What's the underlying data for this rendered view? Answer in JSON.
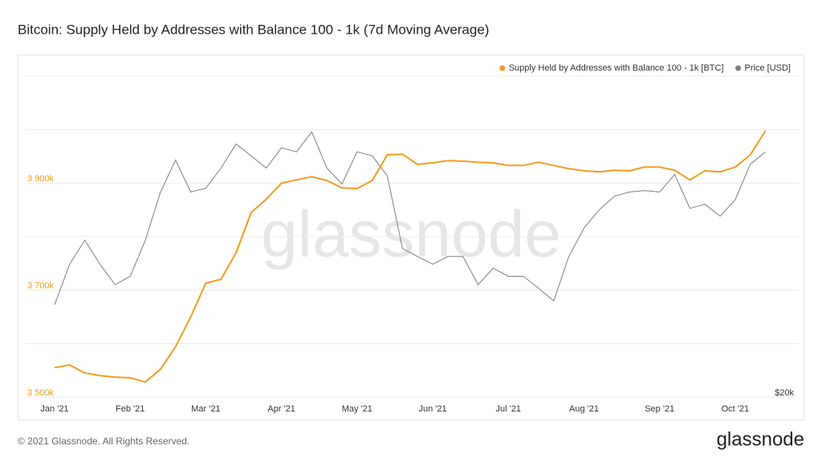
{
  "chart_data": {
    "type": "line",
    "title": "Bitcoin: Supply Held by Addresses with Balance 100 - 1k (7d Moving Average)",
    "x": [
      0,
      0.2,
      0.4,
      0.6,
      0.8,
      1.0,
      1.2,
      1.4,
      1.6,
      1.8,
      2.0,
      2.2,
      2.4,
      2.6,
      2.8,
      3.0,
      3.2,
      3.4,
      3.6,
      3.8,
      4.0,
      4.2,
      4.4,
      4.6,
      4.8,
      5.0,
      5.2,
      5.4,
      5.6,
      5.8,
      6.0,
      6.2,
      6.4,
      6.6,
      6.8,
      7.0,
      7.2,
      7.4,
      7.6,
      7.8,
      8.0,
      8.2,
      8.4,
      8.6,
      8.8,
      9.0,
      9.2,
      9.4
    ],
    "xlim": [
      0,
      9.5
    ],
    "xticks": [
      {
        "value": 0,
        "label": "Jan '21"
      },
      {
        "value": 1,
        "label": "Feb '21"
      },
      {
        "value": 2,
        "label": "Mar '21"
      },
      {
        "value": 3,
        "label": "Apr '21"
      },
      {
        "value": 4,
        "label": "May '21"
      },
      {
        "value": 5,
        "label": "Jun '21"
      },
      {
        "value": 6,
        "label": "Jul '21"
      },
      {
        "value": 7,
        "label": "Aug '21"
      },
      {
        "value": 8,
        "label": "Sep '21"
      },
      {
        "value": 9,
        "label": "Oct '21"
      }
    ],
    "ylim": [
      3500000,
      4100000
    ],
    "yticks": [
      {
        "value": 3500000,
        "label": "3 500k"
      },
      {
        "value": 3600000,
        "label": null
      },
      {
        "value": 3700000,
        "label": "3 700k"
      },
      {
        "value": 3800000,
        "label": null
      },
      {
        "value": 3900000,
        "label": "3 900k"
      },
      {
        "value": 4000000,
        "label": null
      },
      {
        "value": 4100000,
        "label": null
      }
    ],
    "y2lim": [
      20000,
      80000
    ],
    "y2ticks": [
      {
        "value": 20000,
        "label": "$20k"
      }
    ],
    "y2_log": true,
    "grid": true,
    "legend": "top-right",
    "series": [
      {
        "name": "Supply Held by Addresses with Balance 100 - 1k [BTC]",
        "color": "#f39c1f",
        "values": [
          3555000,
          3560000,
          3545000,
          3540000,
          3537000,
          3536000,
          3528000,
          3552000,
          3594000,
          3650000,
          3713000,
          3720000,
          3770000,
          3845000,
          3870000,
          3900000,
          3906000,
          3912000,
          3905000,
          3891000,
          3890000,
          3905000,
          3953000,
          3954000,
          3935000,
          3938000,
          3942000,
          3941000,
          3939000,
          3938000,
          3933000,
          3933000,
          3939000,
          3933000,
          3927000,
          3923000,
          3921000,
          3924000,
          3923000,
          3930000,
          3930000,
          3924000,
          3906000,
          3923000,
          3921000,
          3930000,
          3953000,
          3998000
        ]
      },
      {
        "name": "Price [USD]",
        "color": "#7f7f7f",
        "axis": "y2",
        "values": [
          29800,
          35500,
          39400,
          35500,
          32500,
          33700,
          39400,
          48500,
          55700,
          48500,
          49300,
          53800,
          59700,
          56700,
          53800,
          58700,
          57700,
          62900,
          53800,
          50200,
          57700,
          56700,
          52000,
          38000,
          36700,
          35500,
          36700,
          36700,
          32500,
          34900,
          33700,
          33700,
          32000,
          30300,
          36700,
          41500,
          44900,
          47600,
          48500,
          48800,
          48500,
          52300,
          45200,
          46000,
          43700,
          46900,
          54700,
          57700
        ]
      }
    ]
  },
  "watermark": "glassnode",
  "footer": {
    "copyright": "© 2021 Glassnode. All Rights Reserved.",
    "logo": "glassnode"
  }
}
